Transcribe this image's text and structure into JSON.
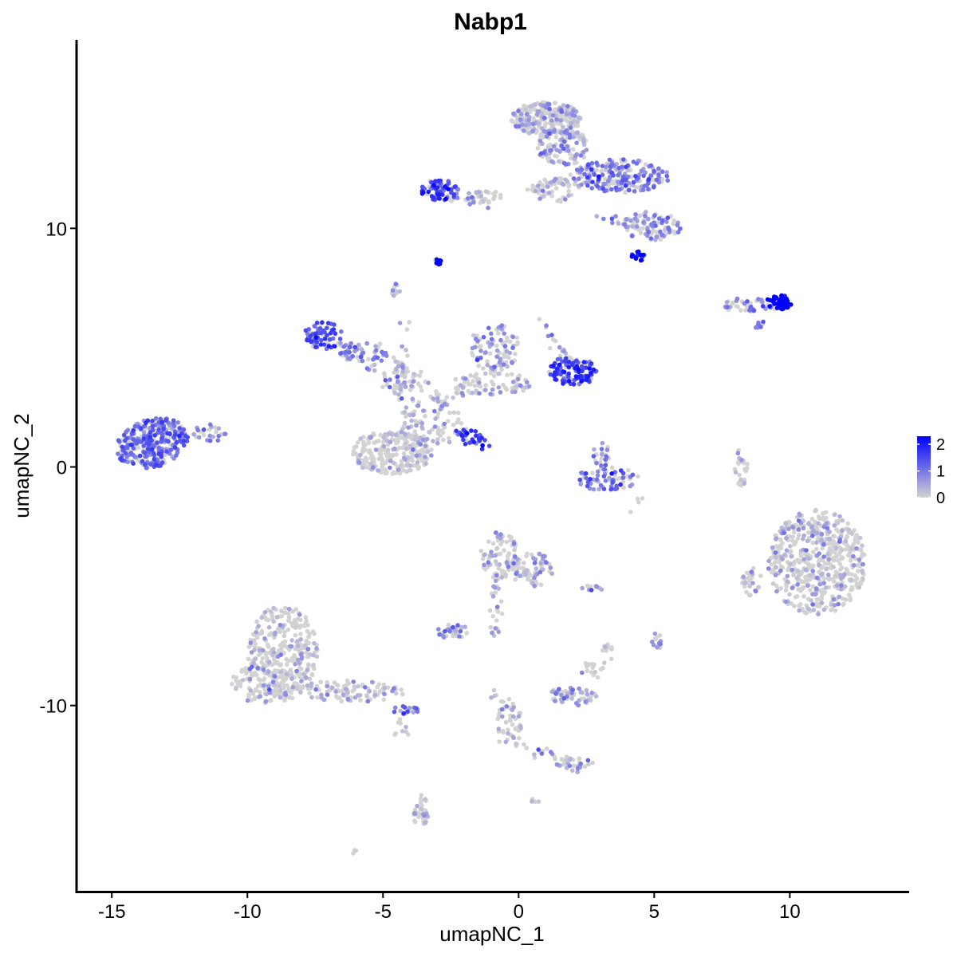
{
  "chart_data": {
    "type": "scatter",
    "title": "Nabp1",
    "xlabel": "umapNC_1",
    "ylabel": "umapNC_2",
    "xlim": [
      -16.3,
      14.4
    ],
    "ylim": [
      -17.8,
      17.9
    ],
    "x_ticks": [
      -15,
      -10,
      -5,
      0,
      5,
      10
    ],
    "x_tick_labels": [
      "-15",
      "-10",
      "-5",
      "0",
      "5",
      "10"
    ],
    "y_ticks": [
      -10,
      0,
      10
    ],
    "y_tick_labels": [
      "-10",
      "0",
      "10"
    ],
    "grid": false,
    "legend": {
      "position": "right",
      "type": "colorbar",
      "min": 0,
      "max": 2.3,
      "ticks": [
        0,
        1,
        2
      ],
      "tick_labels": [
        "0",
        "1",
        "2"
      ],
      "low_color": "#d3d3d3",
      "high_color": "#0000ff"
    },
    "clusters": [
      {
        "cx": -13.5,
        "cy": 1.0,
        "rx": 1.3,
        "ry": 1.05,
        "n": 340,
        "expr": 0.8,
        "elong": 0.28
      },
      {
        "cx": -11.4,
        "cy": 1.4,
        "rx": 0.6,
        "ry": 0.4,
        "n": 25,
        "expr": 0.5
      },
      {
        "cx": 1.0,
        "cy": 14.6,
        "rx": 1.3,
        "ry": 0.7,
        "n": 260,
        "expr": 0.3
      },
      {
        "cx": 1.6,
        "cy": 13.4,
        "rx": 1.0,
        "ry": 0.8,
        "n": 120,
        "expr": 0.4
      },
      {
        "cx": 3.8,
        "cy": 12.2,
        "rx": 1.8,
        "ry": 0.7,
        "n": 220,
        "expr": 0.65
      },
      {
        "cx": 4.9,
        "cy": 10.1,
        "rx": 1.1,
        "ry": 0.6,
        "n": 100,
        "expr": 0.5
      },
      {
        "cx": 4.4,
        "cy": 8.9,
        "rx": 0.3,
        "ry": 0.3,
        "n": 15,
        "expr": 1.6
      },
      {
        "cx": 1.4,
        "cy": 11.6,
        "rx": 0.9,
        "ry": 0.5,
        "n": 45,
        "expr": 0.3
      },
      {
        "cx": -1.3,
        "cy": 11.3,
        "rx": 0.7,
        "ry": 0.3,
        "n": 25,
        "expr": 0.1
      },
      {
        "cx": -2.9,
        "cy": 11.6,
        "rx": 0.7,
        "ry": 0.45,
        "n": 70,
        "expr": 1.1
      },
      {
        "cx": -2.9,
        "cy": 8.6,
        "rx": 0.2,
        "ry": 0.15,
        "n": 10,
        "expr": 2.0
      },
      {
        "cx": -4.5,
        "cy": 7.4,
        "rx": 0.2,
        "ry": 0.3,
        "n": 12,
        "expr": 0.2
      },
      {
        "cx": 8.6,
        "cy": 6.8,
        "rx": 1.2,
        "ry": 0.3,
        "n": 55,
        "expr": 0.6
      },
      {
        "cx": 9.6,
        "cy": 6.9,
        "rx": 0.5,
        "ry": 0.3,
        "n": 55,
        "expr": 1.8
      },
      {
        "cx": 8.8,
        "cy": 6.0,
        "rx": 0.3,
        "ry": 0.2,
        "n": 8,
        "expr": 0.5
      },
      {
        "cx": -7.2,
        "cy": 5.5,
        "rx": 0.7,
        "ry": 0.6,
        "n": 70,
        "expr": 1.0
      },
      {
        "cx": -5.7,
        "cy": 4.8,
        "rx": 0.9,
        "ry": 0.5,
        "n": 50,
        "expr": 0.7
      },
      {
        "cx": -4.2,
        "cy": 3.6,
        "rx": 0.9,
        "ry": 0.6,
        "n": 50,
        "expr": 0.3
      },
      {
        "cx": -0.9,
        "cy": 5.0,
        "rx": 1.0,
        "ry": 1.0,
        "n": 80,
        "expr": 0.5
      },
      {
        "cx": 2.0,
        "cy": 4.0,
        "rx": 0.9,
        "ry": 0.6,
        "n": 120,
        "expr": 1.15
      },
      {
        "cx": -1.0,
        "cy": 3.5,
        "rx": 1.5,
        "ry": 0.5,
        "n": 70,
        "expr": 0.2
      },
      {
        "cx": -3.2,
        "cy": 2.0,
        "rx": 1.1,
        "ry": 1.2,
        "n": 90,
        "expr": 0.25
      },
      {
        "cx": -1.9,
        "cy": 1.3,
        "rx": 0.6,
        "ry": 0.4,
        "n": 20,
        "expr": 1.2,
        "elong": -0.7
      },
      {
        "cx": -4.7,
        "cy": 0.6,
        "rx": 1.5,
        "ry": 0.9,
        "n": 260,
        "expr": 0.12
      },
      {
        "cx": 3.3,
        "cy": -0.5,
        "rx": 1.2,
        "ry": 0.5,
        "n": 75,
        "expr": 0.75
      },
      {
        "cx": 3.1,
        "cy": 0.5,
        "rx": 0.4,
        "ry": 0.5,
        "n": 22,
        "expr": 0.55
      },
      {
        "cx": 8.2,
        "cy": -0.0,
        "rx": 0.25,
        "ry": 0.8,
        "n": 28,
        "expr": 0.2
      },
      {
        "cx": 11.0,
        "cy": -4.0,
        "rx": 1.8,
        "ry": 2.2,
        "n": 560,
        "expr": 0.22
      },
      {
        "cx": 8.6,
        "cy": -4.8,
        "rx": 0.4,
        "ry": 0.6,
        "n": 28,
        "expr": 0.15
      },
      {
        "cx": -0.7,
        "cy": -3.7,
        "rx": 0.7,
        "ry": 1.0,
        "n": 80,
        "expr": 0.3
      },
      {
        "cx": 0.5,
        "cy": -4.3,
        "rx": 0.8,
        "ry": 0.7,
        "n": 70,
        "expr": 0.25
      },
      {
        "cx": -0.9,
        "cy": -6.1,
        "rx": 0.3,
        "ry": 1.0,
        "n": 18,
        "expr": 0.25
      },
      {
        "cx": -2.4,
        "cy": -6.9,
        "rx": 0.6,
        "ry": 0.3,
        "n": 38,
        "expr": 0.5
      },
      {
        "cx": -8.7,
        "cy": -7.8,
        "rx": 1.3,
        "ry": 2.0,
        "n": 320,
        "expr": 0.2
      },
      {
        "cx": -9.4,
        "cy": -9.1,
        "rx": 1.2,
        "ry": 0.8,
        "n": 110,
        "expr": 0.18
      },
      {
        "cx": -6.2,
        "cy": -9.4,
        "rx": 2.0,
        "ry": 0.45,
        "n": 110,
        "expr": 0.3,
        "elong": -0.55
      },
      {
        "cx": -4.2,
        "cy": -10.2,
        "rx": 0.5,
        "ry": 0.2,
        "n": 20,
        "expr": 0.7
      },
      {
        "cx": 2.0,
        "cy": -9.6,
        "rx": 0.9,
        "ry": 0.4,
        "n": 60,
        "expr": 0.35
      },
      {
        "cx": 2.6,
        "cy": -8.5,
        "rx": 0.3,
        "ry": 0.3,
        "n": 10,
        "expr": 0.2
      },
      {
        "cx": 3.3,
        "cy": -7.7,
        "rx": 0.2,
        "ry": 0.3,
        "n": 8,
        "expr": 0.15
      },
      {
        "cx": 5.1,
        "cy": -7.3,
        "rx": 0.2,
        "ry": 0.4,
        "n": 14,
        "expr": 0.25
      },
      {
        "cx": 2.7,
        "cy": -5.1,
        "rx": 0.4,
        "ry": 0.15,
        "n": 10,
        "expr": 0.5
      },
      {
        "cx": -0.3,
        "cy": -10.9,
        "rx": 0.5,
        "ry": 1.3,
        "n": 40,
        "expr": 0.15
      },
      {
        "cx": 2.1,
        "cy": -12.5,
        "rx": 0.7,
        "ry": 0.3,
        "n": 25,
        "expr": 0.35
      },
      {
        "cx": -3.6,
        "cy": -14.4,
        "rx": 0.3,
        "ry": 0.7,
        "n": 38,
        "expr": 0.3
      },
      {
        "cx": 0.6,
        "cy": -14.0,
        "rx": 0.15,
        "ry": 0.15,
        "n": 5,
        "expr": 0.2
      },
      {
        "cx": -6.1,
        "cy": -16.1,
        "rx": 0.15,
        "ry": 0.1,
        "n": 4,
        "expr": 0.1
      },
      {
        "cx": -4.2,
        "cy": -11.2,
        "rx": 0.4,
        "ry": 0.2,
        "n": 5,
        "expr": 0.1
      }
    ],
    "connectors": [
      {
        "from": [
          -4.3,
          6.2
        ],
        "to": [
          -4.4,
          1.5
        ],
        "n": 30,
        "expr": 0.2
      },
      {
        "from": [
          -3.0,
          2.5
        ],
        "to": [
          -0.5,
          4.5
        ],
        "n": 25,
        "expr": 0.2
      },
      {
        "from": [
          -6.5,
          5.0
        ],
        "to": [
          -4.2,
          3.0
        ],
        "n": 25,
        "expr": 0.5
      },
      {
        "from": [
          0.8,
          6.2
        ],
        "to": [
          2.0,
          4.0
        ],
        "n": 20,
        "expr": 0.5
      },
      {
        "from": [
          -2.3,
          1.7
        ],
        "to": [
          -1.3,
          0.7
        ],
        "n": 15,
        "expr": 1.3
      },
      {
        "from": [
          -2.7,
          11.3
        ],
        "to": [
          -0.8,
          11.1
        ],
        "n": 20,
        "expr": 0.5
      },
      {
        "from": [
          3.0,
          10.5
        ],
        "to": [
          3.8,
          10.3
        ],
        "n": 10,
        "expr": 0.6
      },
      {
        "from": [
          0.2,
          11.5
        ],
        "to": [
          2.2,
          12.3
        ],
        "n": 20,
        "expr": 0.3
      },
      {
        "from": [
          -1.0,
          -9.3
        ],
        "to": [
          0.2,
          -11.9
        ],
        "n": 20,
        "expr": 0.15
      },
      {
        "from": [
          0.6,
          -11.9
        ],
        "to": [
          2.4,
          -12.6
        ],
        "n": 18,
        "expr": 0.3
      },
      {
        "from": [
          -0.9,
          -5.0
        ],
        "to": [
          -0.4,
          -4.1
        ],
        "n": 12,
        "expr": 0.2
      },
      {
        "from": [
          3.3,
          -7.6
        ],
        "to": [
          2.8,
          -9.0
        ],
        "n": 8,
        "expr": 0.2
      },
      {
        "from": [
          4.8,
          -1.0
        ],
        "to": [
          4.1,
          -2.1
        ],
        "n": 4,
        "expr": 0.1
      },
      {
        "from": [
          -4.5,
          -10.6
        ],
        "to": [
          -4.0,
          -11.2
        ],
        "n": 4,
        "expr": 0.1
      }
    ]
  }
}
